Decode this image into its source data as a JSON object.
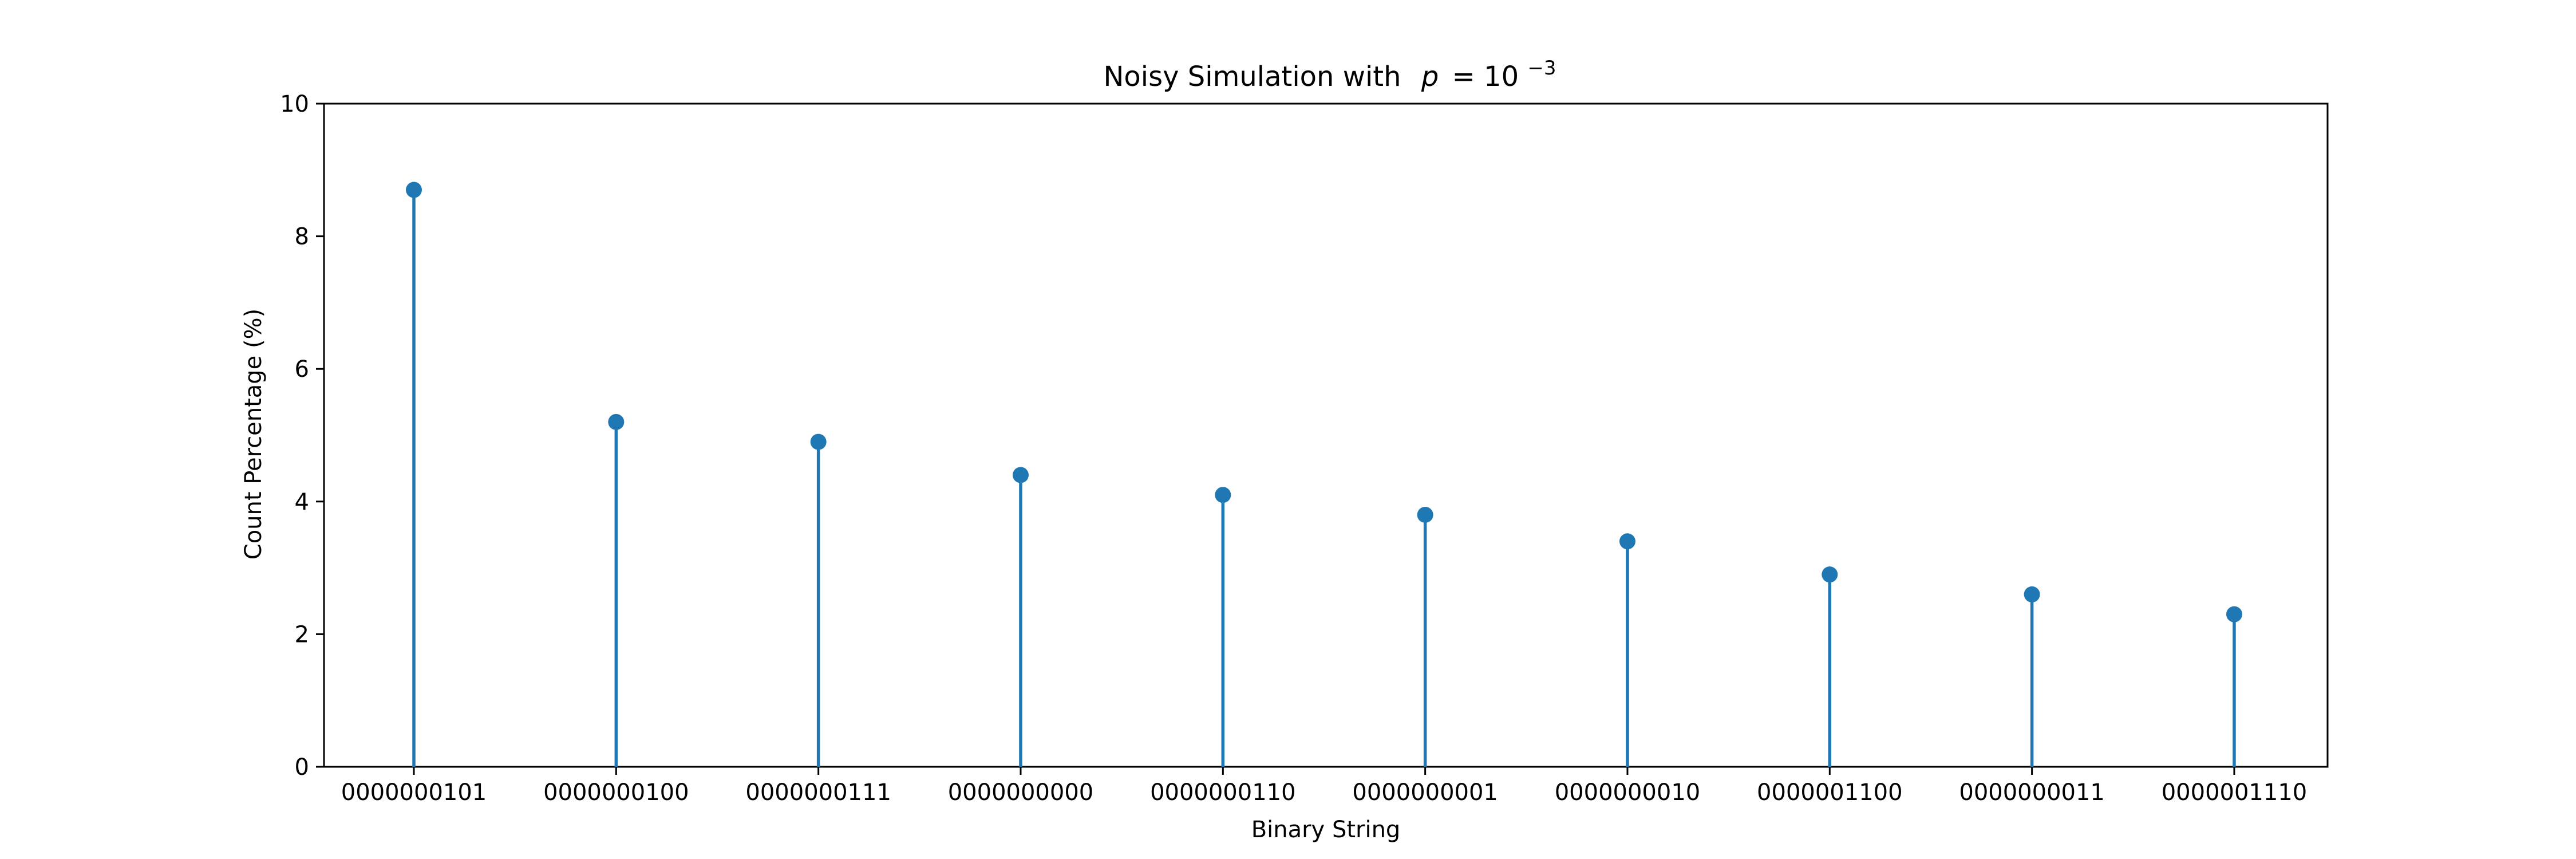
{
  "chart_data": {
    "type": "stem",
    "title_parts": {
      "prefix": "Noisy Simulation with",
      "var": "p",
      "equals": "= 10",
      "exponent": "−3"
    },
    "xlabel": "Binary String",
    "ylabel": "Count Percentage (%)",
    "categories": [
      "0000000101",
      "0000000100",
      "0000000111",
      "0000000000",
      "0000000110",
      "0000000001",
      "0000000010",
      "0000001100",
      "0000000011",
      "0000001110"
    ],
    "values": [
      8.7,
      5.2,
      4.9,
      4.4,
      4.1,
      3.8,
      3.4,
      2.9,
      2.6,
      2.3
    ],
    "ylim": [
      0,
      10
    ],
    "yticks": [
      0,
      2,
      4,
      6,
      8,
      10
    ],
    "grid": false,
    "legend": "none",
    "color": "#1f77b4"
  }
}
